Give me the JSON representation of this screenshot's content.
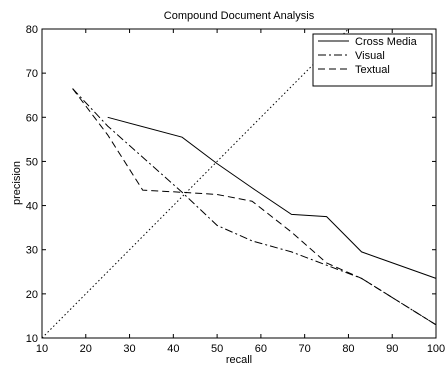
{
  "chart_data": {
    "type": "line",
    "title": "Compound Document Analysis",
    "xlabel": "recall",
    "ylabel": "precision",
    "xlim": [
      10,
      100
    ],
    "ylim": [
      10,
      80
    ],
    "xticks": [
      10,
      20,
      30,
      40,
      50,
      60,
      70,
      80,
      90,
      100
    ],
    "yticks": [
      10,
      20,
      30,
      40,
      50,
      60,
      70,
      80
    ],
    "grid": false,
    "legend_position": "top-right",
    "series": [
      {
        "name": "Cross Media",
        "style": "solid",
        "color": "#000000",
        "x": [
          25,
          42,
          50,
          58,
          67,
          75,
          83,
          100
        ],
        "y": [
          60,
          55.5,
          49.5,
          44,
          38,
          37.5,
          29.5,
          23.5
        ]
      },
      {
        "name": "Visual",
        "style": "dashdot",
        "color": "#000000",
        "x": [
          17,
          25,
          42,
          50,
          58,
          67,
          75,
          83,
          100
        ],
        "y": [
          66.5,
          58,
          43,
          35.5,
          32,
          29.5,
          26.5,
          23.5,
          13
        ]
      },
      {
        "name": "Textual",
        "style": "dashed",
        "color": "#000000",
        "x": [
          17,
          25,
          33,
          42,
          50,
          58,
          67,
          75,
          83,
          100
        ],
        "y": [
          66.5,
          56,
          43.5,
          43,
          42.5,
          41,
          34,
          27,
          23.5,
          13
        ]
      },
      {
        "style": "dotted",
        "color": "#000000",
        "x": [
          10,
          80
        ],
        "y": [
          10,
          80
        ]
      }
    ]
  }
}
